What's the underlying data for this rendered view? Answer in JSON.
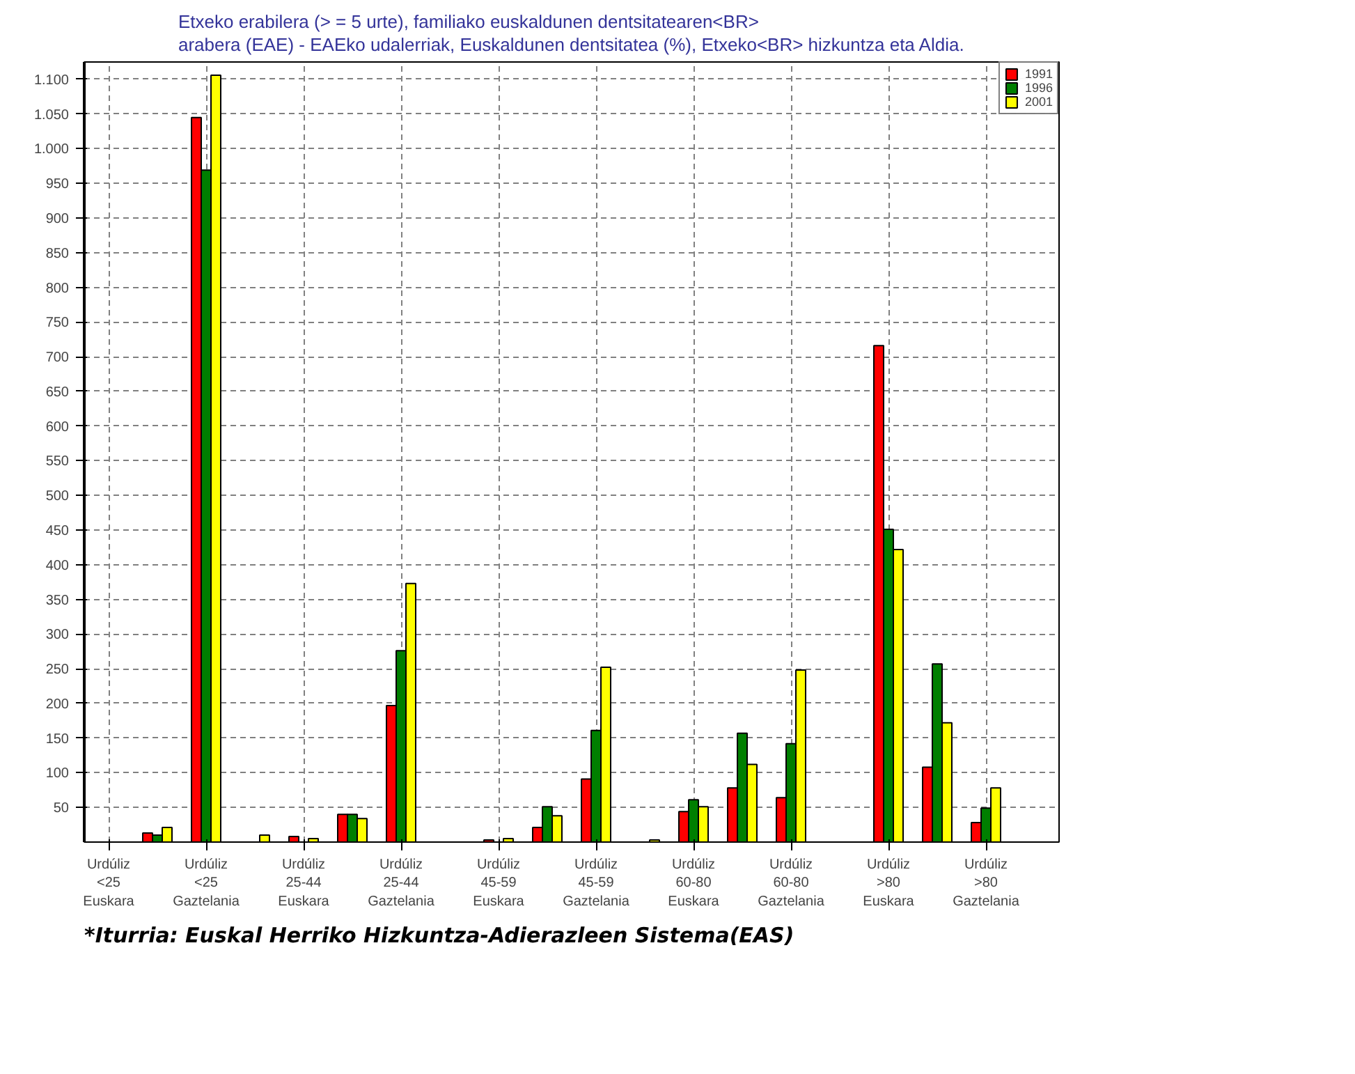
{
  "chart_data": {
    "type": "bar",
    "title": "Etxeko erabilera (> = 5 urte), familiako euskaldunen dentsitatearen<BR>\narabera (EAE) - EAEko udalerriak, Euskaldunen dentsitatea (%), Etxeko<BR> hizkuntza eta Aldia.",
    "categories": [
      "Urdúliz\n<25\nEuskara",
      null,
      "Urdúliz\n<25\nGaztelania",
      null,
      "Urdúliz\n25-44\nEuskara",
      null,
      "Urdúliz\n25-44\nGaztelania",
      null,
      "Urdúliz\n45-59\nEuskara",
      null,
      "Urdúliz\n45-59\nGaztelania",
      null,
      "Urdúliz\n60-80\nEuskara",
      null,
      "Urdúliz\n60-80\nGaztelania",
      null,
      "Urdúliz\n>80\nEuskara",
      null,
      "Urdúliz\n>80\nGaztelania",
      null
    ],
    "series": [
      {
        "name": "1991",
        "color": "#ff0000",
        "values": [
          null,
          13,
          1045,
          null,
          8,
          40,
          197,
          null,
          3,
          21,
          91,
          null,
          44,
          78,
          64,
          null,
          716,
          108,
          28,
          null
        ]
      },
      {
        "name": "1996",
        "color": "#007f00",
        "values": [
          null,
          10,
          969,
          null,
          null,
          40,
          276,
          null,
          null,
          51,
          161,
          null,
          61,
          157,
          142,
          null,
          451,
          257,
          49,
          null
        ]
      },
      {
        "name": "2001",
        "color": "#ffff00",
        "values": [
          null,
          21,
          1106,
          10,
          5,
          34,
          373,
          null,
          5,
          38,
          252,
          3,
          51,
          112,
          248,
          null,
          422,
          172,
          78,
          null
        ]
      }
    ],
    "ylim": [
      0,
      1125
    ],
    "yticks": [
      {
        "value": 50,
        "label": "50"
      },
      {
        "value": 100,
        "label": "100"
      },
      {
        "value": 150,
        "label": "150"
      },
      {
        "value": 200,
        "label": "200"
      },
      {
        "value": 250,
        "label": "250"
      },
      {
        "value": 300,
        "label": "300"
      },
      {
        "value": 350,
        "label": "350"
      },
      {
        "value": 400,
        "label": "400"
      },
      {
        "value": 450,
        "label": "450"
      },
      {
        "value": 500,
        "label": "500"
      },
      {
        "value": 550,
        "label": "550"
      },
      {
        "value": 600,
        "label": "600"
      },
      {
        "value": 650,
        "label": "650"
      },
      {
        "value": 700,
        "label": "700"
      },
      {
        "value": 750,
        "label": "750"
      },
      {
        "value": 800,
        "label": "800"
      },
      {
        "value": 850,
        "label": "850"
      },
      {
        "value": 900,
        "label": "900"
      },
      {
        "value": 950,
        "label": "950"
      },
      {
        "value": 1000,
        "label": "1.000"
      },
      {
        "value": 1050,
        "label": "1.050"
      },
      {
        "value": 1100,
        "label": "1.100"
      }
    ],
    "grid": true,
    "legend": "top right",
    "annotations": [
      "*Iturria: Euskal Herriko Hizkuntza-Adierazleen Sistema(EAS)"
    ]
  }
}
